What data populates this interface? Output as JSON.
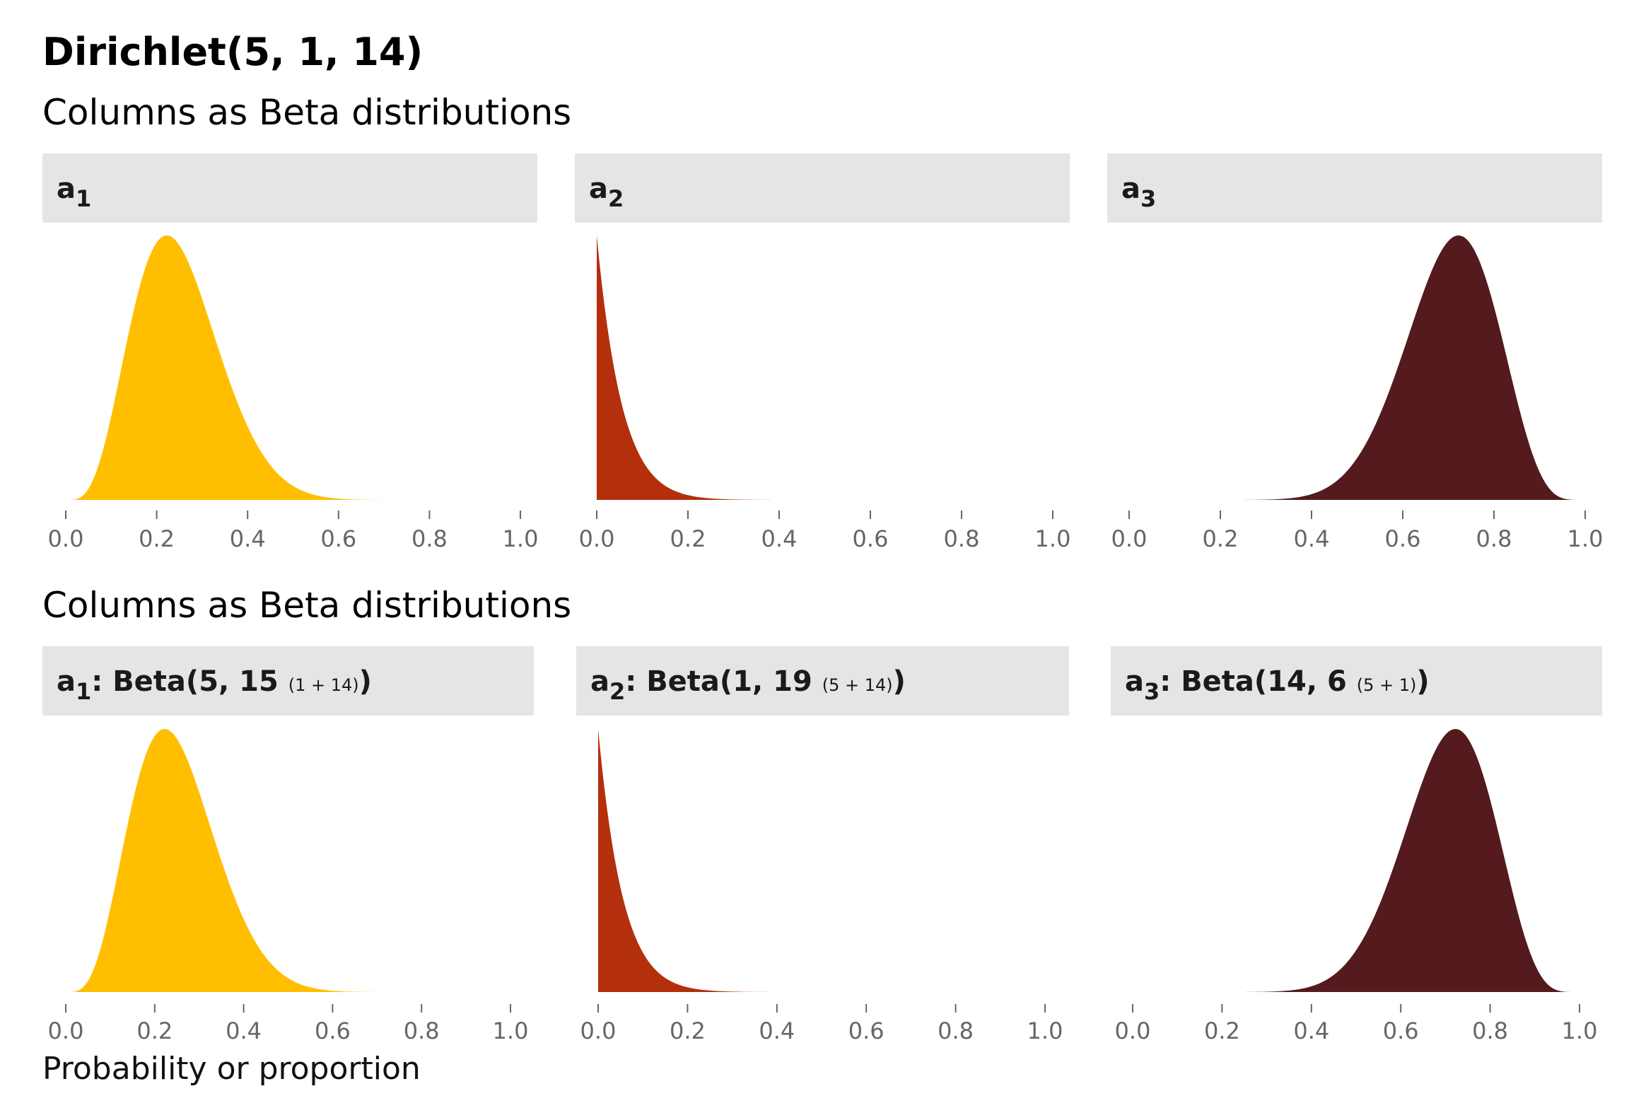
{
  "title": "Dirichlet(5, 1, 14)",
  "xlabel": "Probability or proportion",
  "colors": {
    "a1": "#FFBF00",
    "a2": "#B42F0C",
    "a3": "#541A1D",
    "strip_bg": "#E5E5E5",
    "tick": "#666666"
  },
  "chart_data": [
    {
      "type": "area",
      "panel_group": "top",
      "subtitle": "Columns as Beta distributions",
      "xlim": [
        0,
        1
      ],
      "x_ticks": [
        0.0,
        0.2,
        0.4,
        0.6,
        0.8,
        1.0
      ],
      "x_tick_labels": [
        "0.0",
        "0.2",
        "0.4",
        "0.6",
        "0.8",
        "1.0"
      ],
      "grid": false,
      "series": [
        {
          "name": "a1",
          "strip_parts": [
            "a",
            "1"
          ],
          "color_key": "a1",
          "alpha": 5,
          "beta": 15,
          "kind": "empirical density"
        },
        {
          "name": "a2",
          "strip_parts": [
            "a",
            "2"
          ],
          "color_key": "a2",
          "alpha": 1,
          "beta": 19,
          "kind": "empirical density"
        },
        {
          "name": "a3",
          "strip_parts": [
            "a",
            "3"
          ],
          "color_key": "a3",
          "alpha": 14,
          "beta": 6,
          "kind": "empirical density"
        }
      ]
    },
    {
      "type": "area",
      "panel_group": "bottom",
      "subtitle": "Columns as Beta distributions",
      "xlim": [
        0,
        1
      ],
      "x_ticks": [
        0.0,
        0.2,
        0.4,
        0.6,
        0.8,
        1.0
      ],
      "x_tick_labels": [
        "0.0",
        "0.2",
        "0.4",
        "0.6",
        "0.8",
        "1.0"
      ],
      "grid": false,
      "series": [
        {
          "name": "a1: Beta(5, 15 (1 + 14))",
          "strip_parts": [
            "a",
            "1",
            ": Beta(5, 15 ",
            "(1 + 14)",
            ")"
          ],
          "color_key": "a1",
          "alpha": 5,
          "beta": 15,
          "kind": "theoretical density"
        },
        {
          "name": "a2: Beta(1, 19 (5 + 14))",
          "strip_parts": [
            "a",
            "2",
            ": Beta(1, 19 ",
            "(5 + 14)",
            ")"
          ],
          "color_key": "a2",
          "alpha": 1,
          "beta": 19,
          "kind": "theoretical density"
        },
        {
          "name": "a3: Beta(14, 6 (5 + 1))",
          "strip_parts": [
            "a",
            "3",
            ": Beta(14, 6 ",
            "(5 + 1)",
            ")"
          ],
          "color_key": "a3",
          "alpha": 14,
          "beta": 6,
          "kind": "theoretical density"
        }
      ]
    }
  ]
}
